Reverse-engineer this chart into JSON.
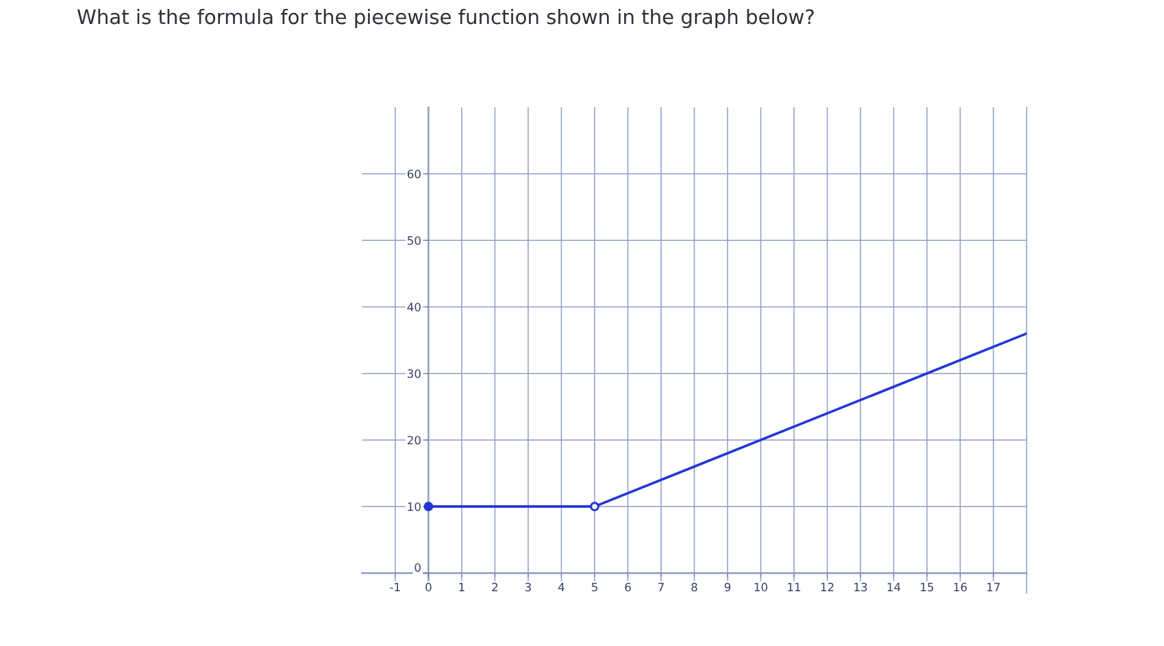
{
  "chart_data": {
    "type": "line",
    "title": "What is the formula for the piecewise function shown in the graph below?",
    "series": [
      {
        "color": "#2236d4",
        "x": [
          0,
          5,
          18
        ],
        "values": [
          10,
          10,
          36
        ]
      },
      {
        "type": "scatter",
        "color": "#2236d4",
        "x": [
          0,
          5
        ],
        "values": [
          10,
          10
        ],
        "marker": "circle",
        "colors": [
          "#2236d4",
          "#ffffff"
        ]
      }
    ],
    "xlim": [
      -2,
      18
    ],
    "ylim": [
      -3,
      70
    ],
    "xticks": [
      -1,
      0,
      1,
      2,
      3,
      4,
      5,
      6,
      7,
      8,
      9,
      10,
      11,
      12,
      13,
      14,
      15,
      16,
      17
    ],
    "yticks": [
      0,
      10,
      20,
      30,
      40,
      50,
      60
    ],
    "grid": true
  }
}
